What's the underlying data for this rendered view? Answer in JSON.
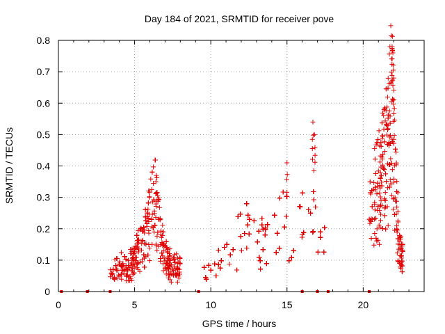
{
  "chart_data": {
    "type": "scatter",
    "title": "Day 184 of 2021, SRMTID for receiver pove",
    "xlabel": "GPS time / hours",
    "ylabel": "SRMTID / TECUs",
    "xlim": [
      0,
      24
    ],
    "ylim": [
      0,
      0.8
    ],
    "xticks": [
      0,
      5,
      10,
      15,
      20
    ],
    "xtick_labels": [
      "0",
      "5",
      "10",
      "15",
      "20"
    ],
    "yticks": [
      0,
      0.1,
      0.2,
      0.3,
      0.4,
      0.5,
      0.6,
      0.7,
      0.8
    ],
    "ytick_labels": [
      "0",
      "0.1",
      "0.2",
      "0.3",
      "0.4",
      "0.5",
      "0.6",
      "0.7",
      "0.8"
    ],
    "grid": true,
    "marker": "+",
    "marker_color": "#e00000",
    "series": [
      {
        "name": "SRMTID",
        "clusters": [
          {
            "x_range": [
              3.4,
              8.0
            ],
            "peaks": [
              [
                3.6,
                0.05
              ],
              [
                4.0,
                0.08
              ],
              [
                4.5,
                0.06
              ],
              [
                5.0,
                0.1
              ],
              [
                5.5,
                0.14
              ],
              [
                6.0,
                0.22
              ],
              [
                6.3,
                0.28
              ],
              [
                6.6,
                0.2
              ],
              [
                7.0,
                0.1
              ],
              [
                7.5,
                0.08
              ],
              [
                8.0,
                0.07
              ]
            ]
          },
          {
            "x_range": [
              9.2,
              17.5
            ],
            "peaks": [
              [
                9.3,
                0.05
              ],
              [
                9.8,
                0.06
              ],
              [
                10.2,
                0.08
              ],
              [
                10.8,
                0.08
              ],
              [
                11.5,
                0.12
              ],
              [
                12.0,
                0.2
              ],
              [
                12.5,
                0.17
              ],
              [
                13.0,
                0.14
              ],
              [
                13.5,
                0.16
              ],
              [
                14.0,
                0.15
              ],
              [
                14.5,
                0.18
              ],
              [
                14.8,
                0.25
              ],
              [
                15.2,
                0.15
              ],
              [
                15.6,
                0.1
              ],
              [
                16.0,
                0.22
              ],
              [
                16.5,
                0.3
              ],
              [
                16.8,
                0.24
              ],
              [
                17.2,
                0.17
              ],
              [
                17.5,
                0.15
              ]
            ]
          },
          {
            "x_range": [
              20.4,
              22.6
            ],
            "peaks": [
              [
                20.4,
                0.22
              ],
              [
                20.8,
                0.3
              ],
              [
                21.2,
                0.34
              ],
              [
                21.6,
                0.45
              ],
              [
                21.9,
                0.58
              ],
              [
                22.1,
                0.32
              ],
              [
                22.4,
                0.12
              ],
              [
                22.6,
                0.1
              ]
            ]
          }
        ],
        "spikes": [
          [
            15.0,
            0.41
          ],
          [
            16.7,
            0.54
          ],
          [
            16.8,
            0.5
          ],
          [
            21.9,
            0.78
          ],
          [
            21.95,
            0.76
          ],
          [
            22.0,
            0.68
          ],
          [
            6.4,
            0.35
          ]
        ],
        "zero_points": [
          0.2,
          1.9,
          3.4,
          9.2,
          16.0,
          17.0,
          17.7,
          20.4
        ]
      }
    ]
  }
}
